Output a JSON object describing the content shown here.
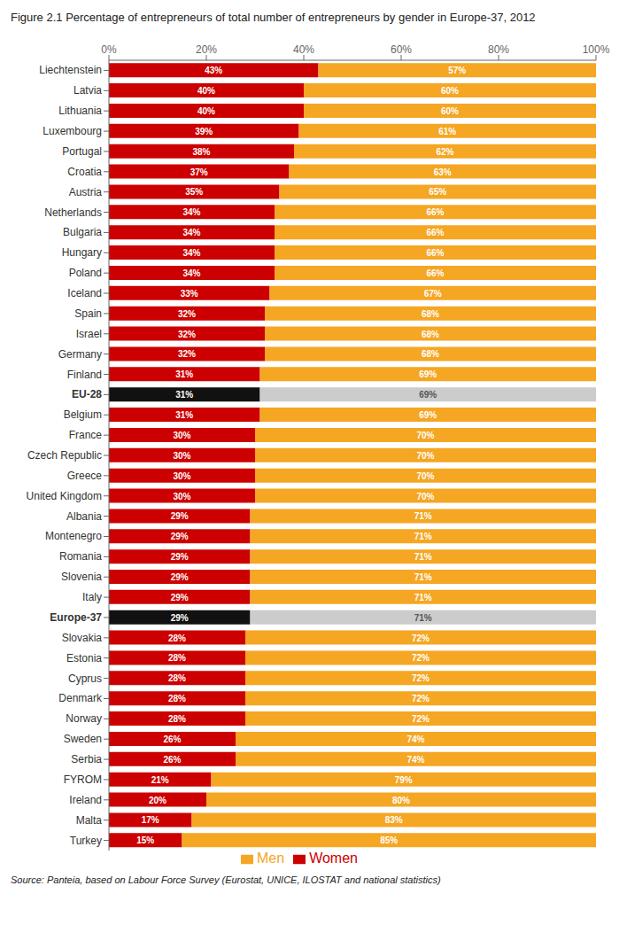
{
  "chart_data": {
    "type": "bar",
    "orientation": "horizontal",
    "stacked": true,
    "data_labels": true,
    "legend": "bottom",
    "grid": false,
    "title": "Figure 2.1   Percentage of entrepreneurs of total number of entrepreneurs by gender in Europe-37, 2012",
    "annotations": [
      "Source: Panteia, based on Labour Force Survey (Eurostat, UNICE, ILOSTAT and national statistics)"
    ],
    "categories": [
      "Liechtenstein",
      "Latvia",
      "Lithuania",
      "Luxembourg",
      "Portugal",
      "Croatia",
      "Austria",
      "Netherlands",
      "Bulgaria",
      "Hungary",
      "Poland",
      "Iceland",
      "Spain",
      "Israel",
      "Germany",
      "Finland",
      "EU-28",
      "Belgium",
      "France",
      "Czech Republic",
      "Greece",
      "United Kingdom",
      "Albania",
      "Montenegro",
      "Romania",
      "Slovenia",
      "Italy",
      "Europe-37",
      "Slovakia",
      "Estonia",
      "Cyprus",
      "Denmark",
      "Norway",
      "Sweden",
      "Serbia",
      "FYROM",
      "Ireland",
      "Malta",
      "Turkey"
    ],
    "xlim": [
      0,
      100
    ],
    "xticks": [
      {
        "value": 0,
        "label": "0%"
      },
      {
        "value": 20,
        "label": "20%"
      },
      {
        "value": 40,
        "label": "40%"
      },
      {
        "value": 60,
        "label": "60%"
      },
      {
        "value": 80,
        "label": "80%"
      },
      {
        "value": 100,
        "label": "100%"
      }
    ],
    "series": [
      {
        "name": "Women",
        "color": "#cc0000",
        "colors": [
          "#cc0000",
          "#cc0000",
          "#cc0000",
          "#cc0000",
          "#cc0000",
          "#cc0000",
          "#cc0000",
          "#cc0000",
          "#cc0000",
          "#cc0000",
          "#cc0000",
          "#cc0000",
          "#cc0000",
          "#cc0000",
          "#cc0000",
          "#cc0000",
          "#111111",
          "#cc0000",
          "#cc0000",
          "#cc0000",
          "#cc0000",
          "#cc0000",
          "#cc0000",
          "#cc0000",
          "#cc0000",
          "#cc0000",
          "#cc0000",
          "#111111",
          "#cc0000",
          "#cc0000",
          "#cc0000",
          "#cc0000",
          "#cc0000",
          "#cc0000",
          "#cc0000",
          "#cc0000",
          "#cc0000",
          "#cc0000",
          "#cc0000"
        ],
        "values": [
          43,
          40,
          40,
          39,
          38,
          37,
          35,
          34,
          34,
          34,
          34,
          33,
          32,
          32,
          32,
          31,
          31,
          31,
          30,
          30,
          30,
          30,
          29,
          29,
          29,
          29,
          29,
          29,
          28,
          28,
          28,
          28,
          28,
          26,
          26,
          21,
          20,
          17,
          15
        ],
        "value_labels": [
          "43%",
          "40%",
          "40%",
          "39%",
          "38%",
          "37%",
          "35%",
          "34%",
          "34%",
          "34%",
          "34%",
          "33%",
          "32%",
          "32%",
          "32%",
          "31%",
          "31%",
          "31%",
          "30%",
          "30%",
          "30%",
          "30%",
          "29%",
          "29%",
          "29%",
          "29%",
          "29%",
          "29%",
          "28%",
          "28%",
          "28%",
          "28%",
          "28%",
          "26%",
          "26%",
          "21%",
          "20%",
          "17%",
          "15%"
        ]
      },
      {
        "name": "Men",
        "color": "#f5a623",
        "colors": [
          "#f5a623",
          "#f5a623",
          "#f5a623",
          "#f5a623",
          "#f5a623",
          "#f5a623",
          "#f5a623",
          "#f5a623",
          "#f5a623",
          "#f5a623",
          "#f5a623",
          "#f5a623",
          "#f5a623",
          "#f5a623",
          "#f5a623",
          "#f5a623",
          "#cccccc",
          "#f5a623",
          "#f5a623",
          "#f5a623",
          "#f5a623",
          "#f5a623",
          "#f5a623",
          "#f5a623",
          "#f5a623",
          "#f5a623",
          "#f5a623",
          "#cccccc",
          "#f5a623",
          "#f5a623",
          "#f5a623",
          "#f5a623",
          "#f5a623",
          "#f5a623",
          "#f5a623",
          "#f5a623",
          "#f5a623",
          "#f5a623",
          "#f5a623"
        ],
        "values": [
          57,
          60,
          60,
          61,
          62,
          63,
          65,
          66,
          66,
          66,
          66,
          67,
          68,
          68,
          68,
          69,
          69,
          69,
          70,
          70,
          70,
          70,
          71,
          71,
          71,
          71,
          71,
          71,
          72,
          72,
          72,
          72,
          72,
          74,
          74,
          79,
          80,
          83,
          85
        ],
        "value_labels": [
          "57%",
          "60%",
          "60%",
          "61%",
          "62%",
          "63%",
          "65%",
          "66%",
          "66%",
          "66%",
          "66%",
          "67%",
          "68%",
          "68%",
          "68%",
          "69%",
          "69%",
          "69%",
          "70%",
          "70%",
          "70%",
          "70%",
          "71%",
          "71%",
          "71%",
          "71%",
          "71%",
          "71%",
          "72%",
          "72%",
          "72%",
          "72%",
          "72%",
          "74%",
          "74%",
          "79%",
          "80%",
          "83%",
          "85%"
        ]
      }
    ]
  }
}
